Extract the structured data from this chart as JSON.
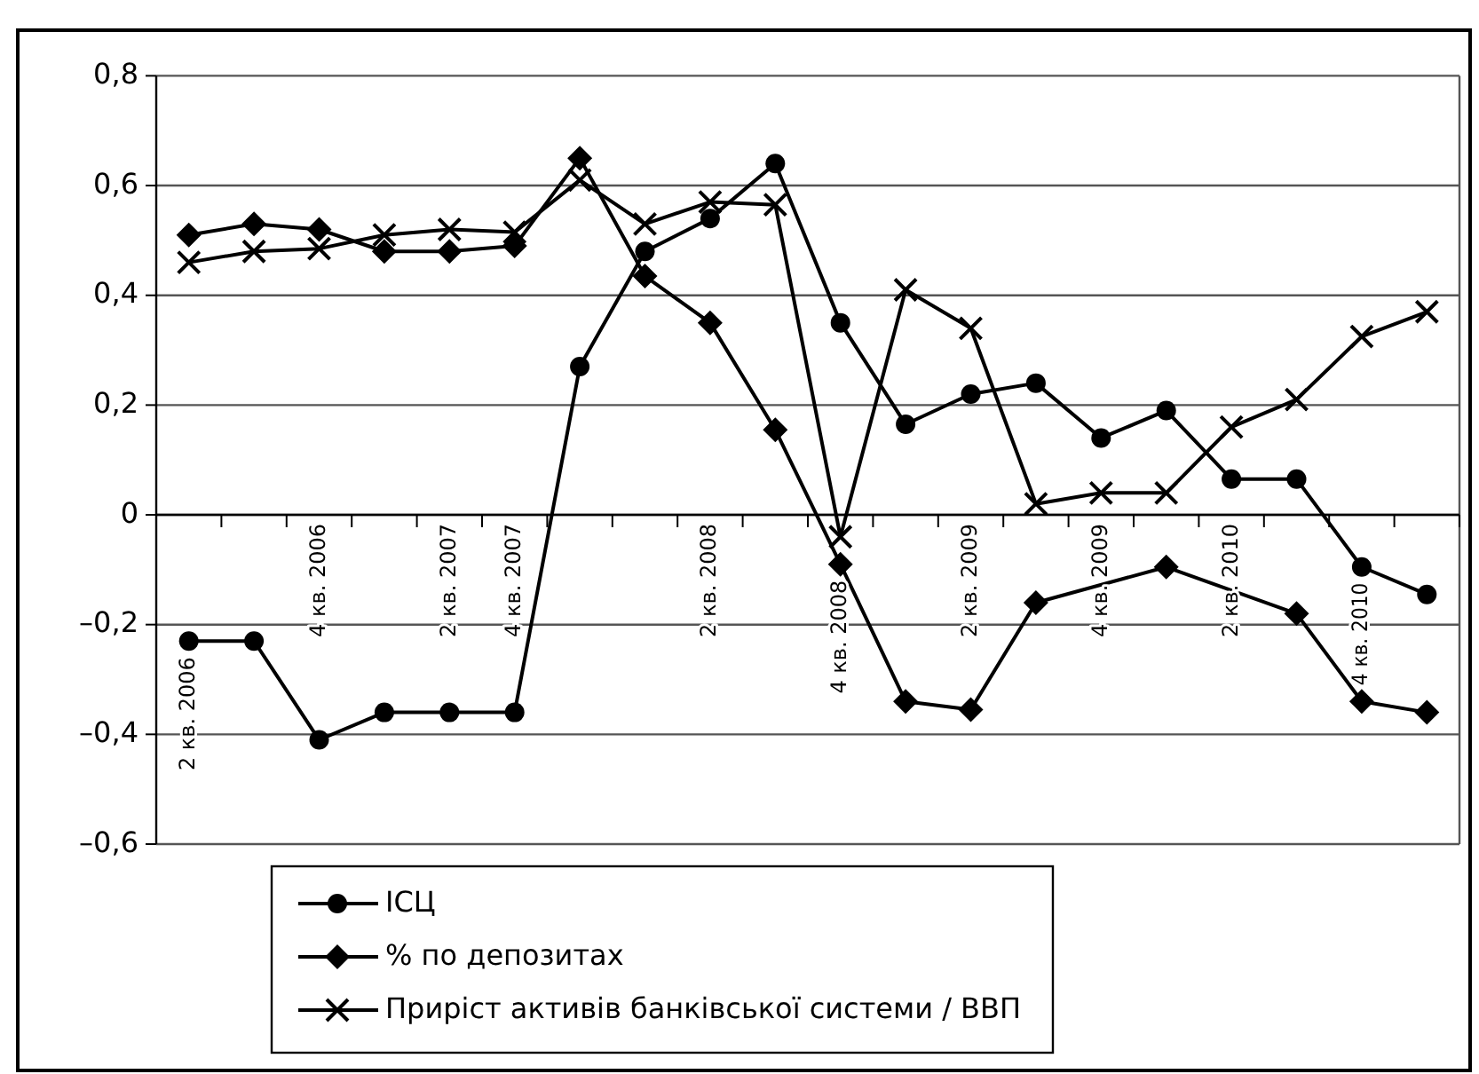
{
  "chart_data": {
    "type": "line",
    "categories": [
      "2 кв. 2006",
      null,
      "4 кв. 2006",
      null,
      "2 кв. 2007",
      "4 кв. 2007",
      null,
      null,
      "2 кв. 2008",
      null,
      "4 кв. 2008",
      null,
      "2 кв. 2009",
      null,
      "4 кв. 2009",
      null,
      "2 кв. 2010",
      null,
      "4 кв. 2010",
      null
    ],
    "series": [
      {
        "name": "ІСЦ",
        "color": "#000000",
        "marker": "circle",
        "values": [
          -0.23,
          -0.23,
          -0.41,
          -0.36,
          -0.36,
          -0.36,
          0.27,
          0.48,
          0.54,
          0.64,
          0.35,
          0.165,
          0.22,
          0.24,
          0.14,
          0.19,
          0.065,
          0.065,
          -0.095,
          -0.145
        ]
      },
      {
        "name": "% по депозитах",
        "color": "#000000",
        "marker": "diamond",
        "values": [
          0.51,
          0.53,
          0.52,
          0.48,
          0.48,
          0.49,
          0.65,
          0.435,
          0.35,
          0.155,
          -0.09,
          -0.34,
          -0.355,
          -0.16,
          null,
          -0.095,
          null,
          -0.18,
          -0.34,
          -0.36
        ]
      },
      {
        "name": "Приріст активів банківської системи / ВВП",
        "color": "#000000",
        "marker": "cross",
        "values": [
          0.46,
          0.48,
          0.485,
          0.51,
          0.52,
          0.515,
          0.61,
          0.53,
          0.57,
          0.565,
          -0.04,
          0.41,
          0.34,
          0.02,
          0.04,
          0.04,
          0.16,
          0.21,
          0.325,
          0.37
        ]
      }
    ],
    "ylim": [
      -0.6,
      0.8
    ],
    "yticks": [
      {
        "value": -0.6,
        "label": "–0,6"
      },
      {
        "value": -0.4,
        "label": "–0,4"
      },
      {
        "value": -0.2,
        "label": "–0,2"
      },
      0,
      {
        "value": 0.2,
        "label": "0,2"
      },
      {
        "value": 0.4,
        "label": "0,4"
      },
      {
        "value": 0.6,
        "label": "0,6"
      },
      {
        "value": 0.8,
        "label": "0,8"
      }
    ],
    "grid": "y",
    "legend": "bottom",
    "line_style": "solid"
  }
}
